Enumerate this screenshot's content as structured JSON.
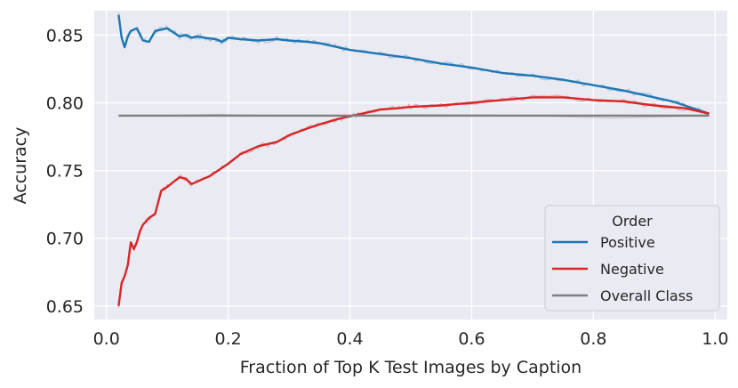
{
  "chart_data": {
    "type": "line",
    "xlabel": "Fraction of Top K Test Images by Caption",
    "ylabel": "Accuracy",
    "xlim": [
      -0.02,
      1.02
    ],
    "ylim": [
      0.64,
      0.868
    ],
    "xticks": [
      0.0,
      0.2,
      0.4,
      0.6,
      0.8,
      1.0
    ],
    "xtick_labels": [
      "0.0",
      "0.2",
      "0.4",
      "0.6",
      "0.8",
      "1.0"
    ],
    "yticks": [
      0.65,
      0.7,
      0.75,
      0.8,
      0.85
    ],
    "ytick_labels": [
      "0.65",
      "0.70",
      "0.75",
      "0.80",
      "0.85"
    ],
    "grid": true,
    "legend": {
      "title": "Order",
      "position": "lower-right"
    },
    "series": [
      {
        "name": "Positive",
        "color": "#1f77b4",
        "x": [
          0.02,
          0.025,
          0.03,
          0.035,
          0.04,
          0.05,
          0.06,
          0.07,
          0.08,
          0.09,
          0.1,
          0.11,
          0.12,
          0.13,
          0.14,
          0.15,
          0.16,
          0.18,
          0.19,
          0.2,
          0.22,
          0.25,
          0.28,
          0.3,
          0.33,
          0.35,
          0.38,
          0.4,
          0.45,
          0.5,
          0.55,
          0.6,
          0.65,
          0.7,
          0.75,
          0.8,
          0.85,
          0.9,
          0.93,
          0.95,
          0.97,
          0.99
        ],
        "values": [
          0.865,
          0.848,
          0.841,
          0.849,
          0.853,
          0.855,
          0.846,
          0.845,
          0.853,
          0.854,
          0.855,
          0.852,
          0.849,
          0.85,
          0.848,
          0.849,
          0.848,
          0.847,
          0.845,
          0.848,
          0.847,
          0.846,
          0.847,
          0.846,
          0.845,
          0.844,
          0.841,
          0.839,
          0.836,
          0.833,
          0.829,
          0.826,
          0.822,
          0.82,
          0.817,
          0.813,
          0.809,
          0.804,
          0.801,
          0.798,
          0.795,
          0.792
        ]
      },
      {
        "name": "Negative",
        "color": "#d62728",
        "x": [
          0.02,
          0.025,
          0.03,
          0.035,
          0.04,
          0.045,
          0.05,
          0.055,
          0.06,
          0.07,
          0.08,
          0.09,
          0.1,
          0.12,
          0.13,
          0.14,
          0.15,
          0.17,
          0.2,
          0.22,
          0.25,
          0.28,
          0.3,
          0.33,
          0.35,
          0.38,
          0.4,
          0.42,
          0.45,
          0.48,
          0.5,
          0.55,
          0.6,
          0.65,
          0.7,
          0.75,
          0.8,
          0.85,
          0.9,
          0.95,
          0.99
        ],
        "values": [
          0.65,
          0.667,
          0.672,
          0.68,
          0.697,
          0.692,
          0.697,
          0.705,
          0.71,
          0.715,
          0.718,
          0.735,
          0.738,
          0.745,
          0.744,
          0.74,
          0.742,
          0.746,
          0.755,
          0.762,
          0.768,
          0.771,
          0.776,
          0.781,
          0.784,
          0.788,
          0.79,
          0.792,
          0.795,
          0.796,
          0.797,
          0.798,
          0.8,
          0.802,
          0.804,
          0.804,
          0.802,
          0.801,
          0.798,
          0.796,
          0.792
        ]
      },
      {
        "name": "Overall Class",
        "color": "#7f7f7f",
        "x": [
          0.02,
          0.99
        ],
        "values": [
          0.7905,
          0.7905
        ]
      }
    ]
  }
}
